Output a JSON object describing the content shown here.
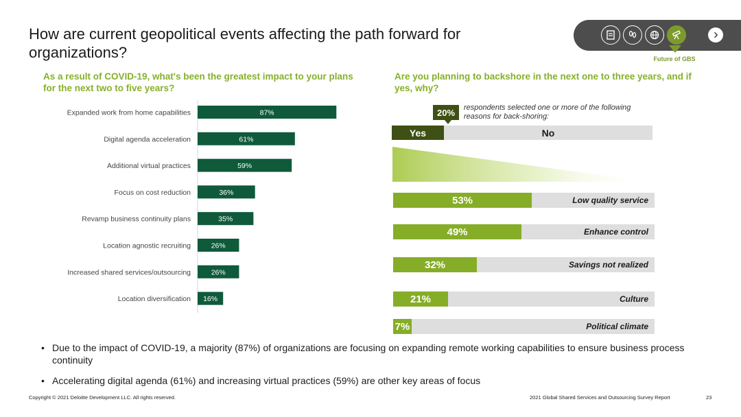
{
  "title": "How are current geopolitical events affecting the path forward for organizations?",
  "nav": {
    "icons": [
      "document-icon",
      "footprints-icon",
      "globe-icon",
      "telescope-icon"
    ],
    "active_icon": "telescope-icon",
    "caption": "Future of GBS",
    "next_icon": "chevron-right-icon"
  },
  "left_heading": "As a result of COVID-19, what's been the greatest impact to your plans for the next two to five years?",
  "right_heading": "Are you planning to backshore in the next one to three years, and if yes, why?",
  "backshore": {
    "stat": "20%",
    "note": "respondents selected one or more of the following reasons for back-shoring:",
    "yes_label": "Yes",
    "no_label": "No",
    "yes_value": 20
  },
  "reasons": [
    {
      "value": 53,
      "label_value": "53%",
      "reason": "Low quality service"
    },
    {
      "value": 49,
      "label_value": "49%",
      "reason": "Enhance control"
    },
    {
      "value": 32,
      "label_value": "32%",
      "reason": "Savings not realized"
    },
    {
      "value": 21,
      "label_value": "21%",
      "reason": "Culture"
    },
    {
      "value": 7,
      "label_value": "7%",
      "reason": "Political climate"
    }
  ],
  "chart_data": {
    "type": "bar",
    "orientation": "horizontal",
    "categories": [
      "Expanded work from home capabilities",
      "Digital agenda acceleration",
      "Additional virtual practices",
      "Focus on cost reduction",
      "Revamp business continuity plans",
      "Location agnostic recruiting",
      "Increased shared services/outsourcing",
      "Location diversification"
    ],
    "values": [
      87,
      61,
      59,
      36,
      35,
      26,
      26,
      16
    ],
    "data_labels": [
      "87%",
      "61%",
      "59%",
      "36%",
      "35%",
      "26%",
      "26%",
      "16%"
    ],
    "xlim": [
      0,
      100
    ],
    "bar_color": "#0f5a3a",
    "grid": false
  },
  "bullets": [
    "Due to the impact of COVID-19, a majority (87%) of organizations are focusing on expanding remote working capabilities to ensure business process continuity",
    "Accelerating digital agenda (61%) and increasing virtual practices (59%) are other key areas of focus"
  ],
  "footer": {
    "copyright": "Copyright © 2021 Deloitte Development LLC. All rights reserved.",
    "report": "2021 Global Shared Services and Outsourcing Survey Report",
    "page": "23"
  }
}
